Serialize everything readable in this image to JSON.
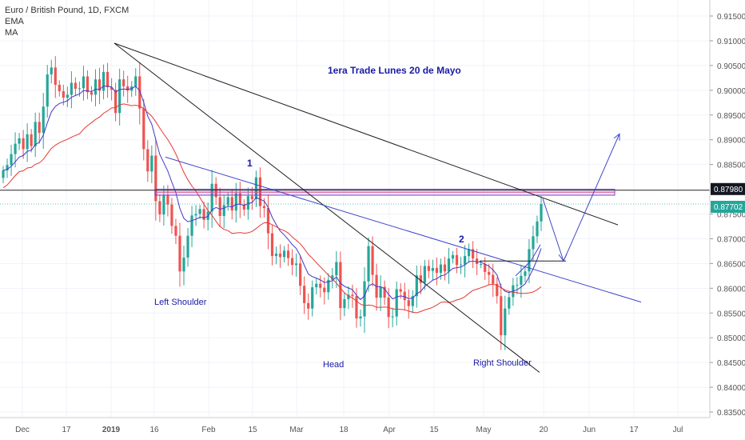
{
  "legend": {
    "symbol": "Euro / British Pound, 1D, FXCM",
    "ema": "EMA",
    "ma": "MA"
  },
  "chart_data": {
    "type": "candlestick",
    "title": "Euro / British Pound, 1D, FXCM",
    "ylim": [
      0.8345,
      0.917
    ],
    "y_ticks": [
      0.835,
      0.84,
      0.845,
      0.85,
      0.855,
      0.86,
      0.865,
      0.87,
      0.875,
      0.885,
      0.89,
      0.895,
      0.9,
      0.905,
      0.91,
      0.915
    ],
    "y_tick_labels": [
      "0.83500",
      "0.84000",
      "0.84500",
      "0.85000",
      "0.85500",
      "0.86000",
      "0.86500",
      "0.87000",
      "0.87500",
      "0.88500",
      "0.89000",
      "0.89500",
      "0.90000",
      "0.90500",
      "0.91000",
      "0.91500"
    ],
    "x_ticks": [
      "Dec",
      "17",
      "2019",
      "16",
      "Feb",
      "15",
      "Mar",
      "18",
      "Apr",
      "15",
      "May",
      "20",
      "Jun",
      "17",
      "Jul"
    ],
    "price_labels": [
      {
        "text": "0.87980",
        "value": 0.8798,
        "bg": "#131722"
      },
      {
        "text": "0.87702",
        "value": 0.87702,
        "bg": "#26a69a"
      }
    ],
    "annotations": {
      "title_note": "1era Trade Lunes 20 de Mayo",
      "label_1": "1",
      "label_2": "2",
      "left_shoulder": "Left Shoulder",
      "head": "Head",
      "right_shoulder": "Right Shoulder"
    },
    "closes": [
      0.8838,
      0.8849,
      0.8871,
      0.8892,
      0.8903,
      0.8881,
      0.8911,
      0.8887,
      0.8936,
      0.8914,
      0.8967,
      0.9032,
      0.9046,
      0.9011,
      0.8998,
      0.8985,
      0.8991,
      0.9015,
      0.9003,
      0.9004,
      0.9028,
      0.8996,
      0.8991,
      0.9022,
      0.8999,
      0.9037,
      0.9006,
      0.9001,
      0.8954,
      0.9022,
      0.9008,
      0.8999,
      0.9008,
      0.9028,
      0.8963,
      0.8881,
      0.8836,
      0.8868,
      0.8776,
      0.8749,
      0.8788,
      0.8769,
      0.8726,
      0.8706,
      0.8634,
      0.8662,
      0.8706,
      0.8747,
      0.875,
      0.876,
      0.8738,
      0.8755,
      0.8811,
      0.8784,
      0.8746,
      0.8768,
      0.8784,
      0.8757,
      0.8792,
      0.8769,
      0.8759,
      0.8786,
      0.878,
      0.8824,
      0.8766,
      0.8762,
      0.8711,
      0.8665,
      0.867,
      0.8663,
      0.8676,
      0.8661,
      0.8647,
      0.865,
      0.8605,
      0.857,
      0.8559,
      0.8602,
      0.8609,
      0.8601,
      0.8592,
      0.8617,
      0.8626,
      0.8653,
      0.856,
      0.8578,
      0.8587,
      0.8584,
      0.8539,
      0.8543,
      0.8614,
      0.8685,
      0.8627,
      0.8581,
      0.8603,
      0.8581,
      0.8542,
      0.8543,
      0.8598,
      0.8593,
      0.8576,
      0.8564,
      0.8584,
      0.8626,
      0.8611,
      0.8645,
      0.8635,
      0.8641,
      0.8631,
      0.8648,
      0.8634,
      0.866,
      0.8667,
      0.8647,
      0.8648,
      0.8665,
      0.8679,
      0.866,
      0.8649,
      0.8649,
      0.8633,
      0.8627,
      0.8609,
      0.8584,
      0.8505,
      0.8559,
      0.8582,
      0.8606,
      0.8607,
      0.8625,
      0.8634,
      0.8679,
      0.8705,
      0.8735,
      0.877
    ],
    "ema": {
      "name": "EMA",
      "color": "#4338ca"
    },
    "ma": {
      "name": "MA",
      "color": "#e53935"
    }
  },
  "colors": {
    "up": "#26a69a",
    "down": "#ef5350",
    "trend_line": "#1e1e1e",
    "blue_line": "#3f47c9",
    "annotation_text": "#1a1aa6",
    "grid": "#f0f3fa",
    "axis_text": "#555555"
  }
}
